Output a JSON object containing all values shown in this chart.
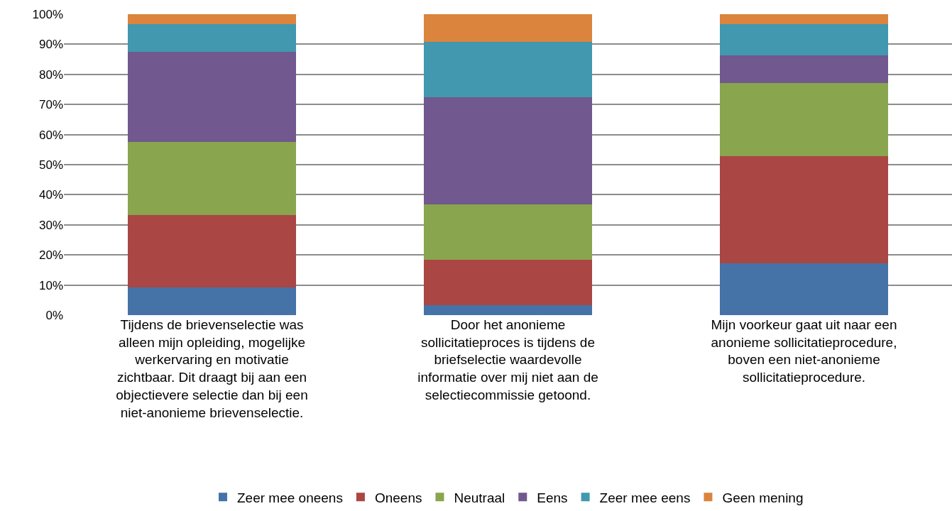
{
  "chart_data": {
    "type": "bar",
    "stacked": true,
    "categories": [
      "Tijdens de brievenselectie was alleen mijn opleiding, mogelijke werkervaring en motivatie zichtbaar. Dit draagt bij aan een objectievere selectie dan bij een niet-anonieme brievenselectie.",
      "Door het anonieme sollicitatieproces is tijdens de briefselectie waardevolle informatie over mij niet aan de selectiecommissie getoond.",
      "Mijn voorkeur gaat uit naar een anonieme sollicitatieprocedure, boven een niet-anonieme sollicitatieprocedure."
    ],
    "series": [
      {
        "name": "Zeer mee oneens",
        "color": "#4572a7",
        "values": [
          9.2,
          3.4,
          17.3
        ]
      },
      {
        "name": "Oneens",
        "color": "#aa4643",
        "values": [
          24.1,
          15.0,
          35.6
        ]
      },
      {
        "name": "Neutraal",
        "color": "#89a54e",
        "values": [
          24.2,
          18.3,
          24.2
        ]
      },
      {
        "name": "Eens",
        "color": "#71588f",
        "values": [
          29.9,
          35.8,
          9.2
        ]
      },
      {
        "name": "Zeer mee eens",
        "color": "#4198af",
        "values": [
          9.2,
          18.2,
          10.3
        ]
      },
      {
        "name": "Geen mening",
        "color": "#db843d",
        "values": [
          3.4,
          9.3,
          3.4
        ]
      }
    ],
    "ylim": [
      0,
      100
    ],
    "yticks": [
      {
        "value": 0,
        "label": "0%"
      },
      {
        "value": 10,
        "label": "10%"
      },
      {
        "value": 20,
        "label": "20%"
      },
      {
        "value": 30,
        "label": "30%"
      },
      {
        "value": 40,
        "label": "40%"
      },
      {
        "value": 50,
        "label": "50%"
      },
      {
        "value": 60,
        "label": "60%"
      },
      {
        "value": 70,
        "label": "70%"
      },
      {
        "value": 80,
        "label": "80%"
      },
      {
        "value": 90,
        "label": "90%"
      },
      {
        "value": 100,
        "label": "100%"
      }
    ],
    "grid": "y",
    "legend": "bottom"
  }
}
